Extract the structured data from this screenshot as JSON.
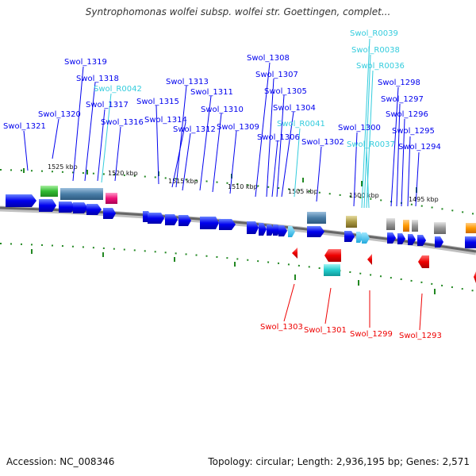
{
  "title": "Syntrophomonas wolfei subsp. wolfei str. Goettingen, complet...",
  "footer": {
    "accession": "Accession: NC_008346",
    "topology": "Topology: circular; Length: 2,936,195 bp; Genes: 2,571"
  },
  "colors": {
    "gene": "#0000ee",
    "rna": "#33ccdd",
    "reverse": "#ee0000",
    "backbone": "#777777",
    "tick": "#228822"
  },
  "ticks": [
    "1525 kbp",
    "1520 kbp",
    "1515 kbp",
    "1510 kbp",
    "1505 kbp",
    "1500 kbp",
    "1495 kbp"
  ],
  "labels_top": [
    {
      "text": "Swol_1321",
      "kind": "gene"
    },
    {
      "text": "Swol_1320",
      "kind": "gene"
    },
    {
      "text": "Swol_1319",
      "kind": "gene"
    },
    {
      "text": "Swol_1318",
      "kind": "gene"
    },
    {
      "text": "Swol_R0042",
      "kind": "rna"
    },
    {
      "text": "Swol_1317",
      "kind": "gene"
    },
    {
      "text": "Swol_1316",
      "kind": "gene"
    },
    {
      "text": "Swol_1315",
      "kind": "gene"
    },
    {
      "text": "Swol_1314",
      "kind": "gene"
    },
    {
      "text": "Swol_1313",
      "kind": "gene"
    },
    {
      "text": "Swol_1312",
      "kind": "gene"
    },
    {
      "text": "Swol_1311",
      "kind": "gene"
    },
    {
      "text": "Swol_1310",
      "kind": "gene"
    },
    {
      "text": "Swol_1309",
      "kind": "gene"
    },
    {
      "text": "Swol_1308",
      "kind": "gene"
    },
    {
      "text": "Swol_1307",
      "kind": "gene"
    },
    {
      "text": "Swol_1306",
      "kind": "gene"
    },
    {
      "text": "Swol_1305",
      "kind": "gene"
    },
    {
      "text": "Swol_1304",
      "kind": "gene"
    },
    {
      "text": "Swol_R0041",
      "kind": "rna"
    },
    {
      "text": "Swol_1302",
      "kind": "gene"
    },
    {
      "text": "Swol_1300",
      "kind": "gene"
    },
    {
      "text": "Swol_R0037",
      "kind": "rna"
    },
    {
      "text": "Swol_R0039",
      "kind": "rna"
    },
    {
      "text": "Swol_R0038",
      "kind": "rna"
    },
    {
      "text": "Swol_R0036",
      "kind": "rna"
    },
    {
      "text": "Swol_1298",
      "kind": "gene"
    },
    {
      "text": "Swol_1297",
      "kind": "gene"
    },
    {
      "text": "Swol_1296",
      "kind": "gene"
    },
    {
      "text": "Swol_1295",
      "kind": "gene"
    },
    {
      "text": "Swol_1294",
      "kind": "gene"
    }
  ],
  "labels_bottom": [
    {
      "text": "Swol_1303",
      "kind": "reverse"
    },
    {
      "text": "Swol_1301",
      "kind": "reverse"
    },
    {
      "text": "Swol_1299",
      "kind": "reverse"
    },
    {
      "text": "Swol_1293",
      "kind": "reverse"
    }
  ]
}
